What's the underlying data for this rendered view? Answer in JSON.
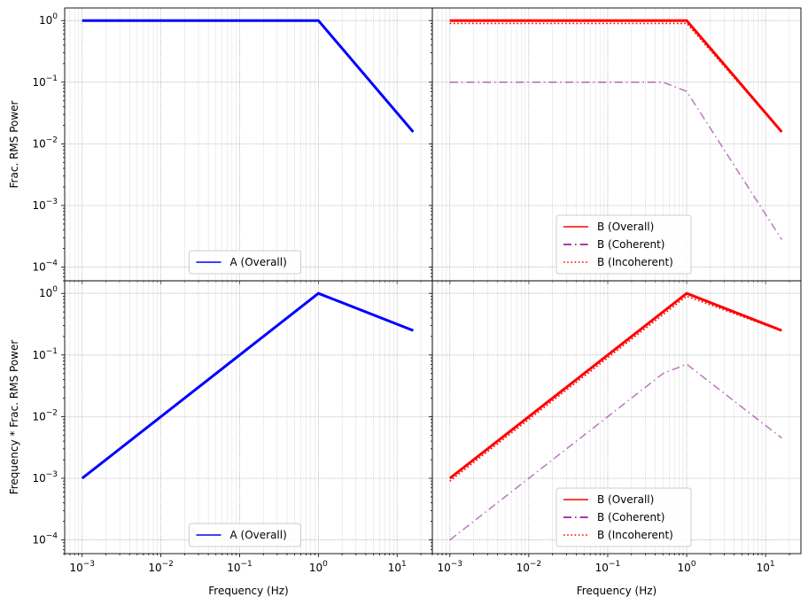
{
  "chart_data": [
    {
      "type": "line",
      "panel": "top-left",
      "title": "",
      "xlabel": "",
      "ylabel": "Frac. RMS Power",
      "xscale": "log",
      "yscale": "log",
      "xlim": [
        0.0006,
        28
      ],
      "ylim": [
        6e-05,
        1.6
      ],
      "grid": true,
      "legend_position": "lower-center",
      "x_tick_labels_visible": false,
      "series": [
        {
          "name": "A (Overall)",
          "color": "#0000ff",
          "style": "solid",
          "alpha": 1.0,
          "width": 3,
          "x": [
            0.001,
            1,
            16
          ],
          "y": [
            1.0,
            1.0,
            0.0156
          ]
        }
      ]
    },
    {
      "type": "line",
      "panel": "top-right",
      "title": "",
      "xlabel": "",
      "ylabel": "",
      "xscale": "log",
      "yscale": "log",
      "xlim": [
        0.0006,
        28
      ],
      "ylim": [
        6e-05,
        1.6
      ],
      "grid": true,
      "legend_position": "lower-center",
      "x_tick_labels_visible": false,
      "y_tick_labels_visible": false,
      "series": [
        {
          "name": "B (Overall)",
          "color": "#ff0000",
          "style": "solid",
          "alpha": 1.0,
          "width": 3,
          "x": [
            0.001,
            1,
            16
          ],
          "y": [
            1.0,
            1.0,
            0.0156
          ]
        },
        {
          "name": "B (Coherent)",
          "color": "#800080",
          "style": "dashdot",
          "alpha": 0.5,
          "width": 1.6,
          "x": [
            0.001,
            0.5,
            1,
            16
          ],
          "y": [
            0.1,
            0.1,
            0.071,
            0.00028
          ]
        },
        {
          "name": "B (Incoherent)",
          "color": "#ff0000",
          "style": "dotted",
          "alpha": 1.0,
          "width": 1.6,
          "x": [
            0.001,
            1,
            16
          ],
          "y": [
            0.9,
            0.9,
            0.0155
          ]
        }
      ]
    },
    {
      "type": "line",
      "panel": "bottom-left",
      "title": "",
      "xlabel": "Frequency (Hz)",
      "ylabel": "Frequency * Frac. RMS Power",
      "xscale": "log",
      "yscale": "log",
      "xlim": [
        0.0006,
        28
      ],
      "ylim": [
        6e-05,
        1.6
      ],
      "grid": true,
      "legend_position": "lower-center",
      "series": [
        {
          "name": "A (Overall)",
          "color": "#0000ff",
          "style": "solid",
          "alpha": 1.0,
          "width": 3,
          "x": [
            0.001,
            1,
            16
          ],
          "y": [
            0.001,
            1.0,
            0.25
          ]
        }
      ]
    },
    {
      "type": "line",
      "panel": "bottom-right",
      "title": "",
      "xlabel": "Frequency (Hz)",
      "ylabel": "",
      "xscale": "log",
      "yscale": "log",
      "xlim": [
        0.0006,
        28
      ],
      "ylim": [
        6e-05,
        1.6
      ],
      "grid": true,
      "legend_position": "lower-center",
      "y_tick_labels_visible": false,
      "series": [
        {
          "name": "B (Overall)",
          "color": "#ff0000",
          "style": "solid",
          "alpha": 1.0,
          "width": 3,
          "x": [
            0.001,
            1,
            16
          ],
          "y": [
            0.001,
            1.0,
            0.25
          ]
        },
        {
          "name": "B (Coherent)",
          "color": "#800080",
          "style": "dashdot",
          "alpha": 0.5,
          "width": 1.6,
          "x": [
            0.001,
            0.5,
            1,
            16
          ],
          "y": [
            0.0001,
            0.05,
            0.071,
            0.0045
          ]
        },
        {
          "name": "B (Incoherent)",
          "color": "#ff0000",
          "style": "dotted",
          "alpha": 1.0,
          "width": 1.6,
          "x": [
            0.001,
            1,
            16
          ],
          "y": [
            0.0009,
            0.9,
            0.245
          ]
        }
      ]
    }
  ]
}
